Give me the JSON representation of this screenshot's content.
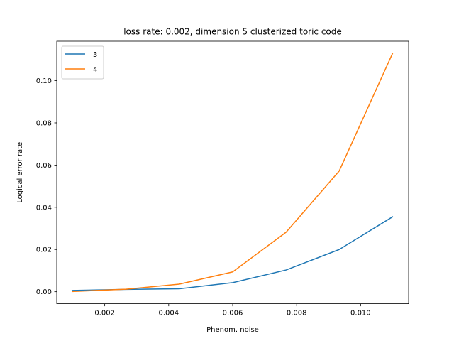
{
  "chart_data": {
    "type": "line",
    "title": "loss rate: 0.002, dimension 5 clusterized toric code",
    "xlabel": "Phenom. noise",
    "ylabel": "Logical error rate",
    "x": [
      0.001,
      0.00267,
      0.00433,
      0.006,
      0.00767,
      0.00933,
      0.011
    ],
    "xlim": [
      0.0005,
      0.0115
    ],
    "ylim": [
      -0.0057,
      0.1187
    ],
    "xticks": [
      0.002,
      0.004,
      0.006,
      0.008,
      0.01
    ],
    "xtick_labels": [
      "0.002",
      "0.004",
      "0.006",
      "0.008",
      "0.010"
    ],
    "yticks": [
      0.0,
      0.02,
      0.04,
      0.06,
      0.08,
      0.1
    ],
    "ytick_labels": [
      "0.00",
      "0.02",
      "0.04",
      "0.06",
      "0.08",
      "0.10"
    ],
    "grid": false,
    "legend_position": "top-left",
    "series": [
      {
        "name": "3",
        "color": "#1f77b4",
        "values": [
          0.0006,
          0.0011,
          0.0014,
          0.0043,
          0.0103,
          0.02,
          0.0355
        ]
      },
      {
        "name": "4",
        "color": "#ff7f0e",
        "values": [
          0.0001,
          0.0012,
          0.0036,
          0.0094,
          0.0282,
          0.0572,
          0.113
        ]
      }
    ]
  }
}
